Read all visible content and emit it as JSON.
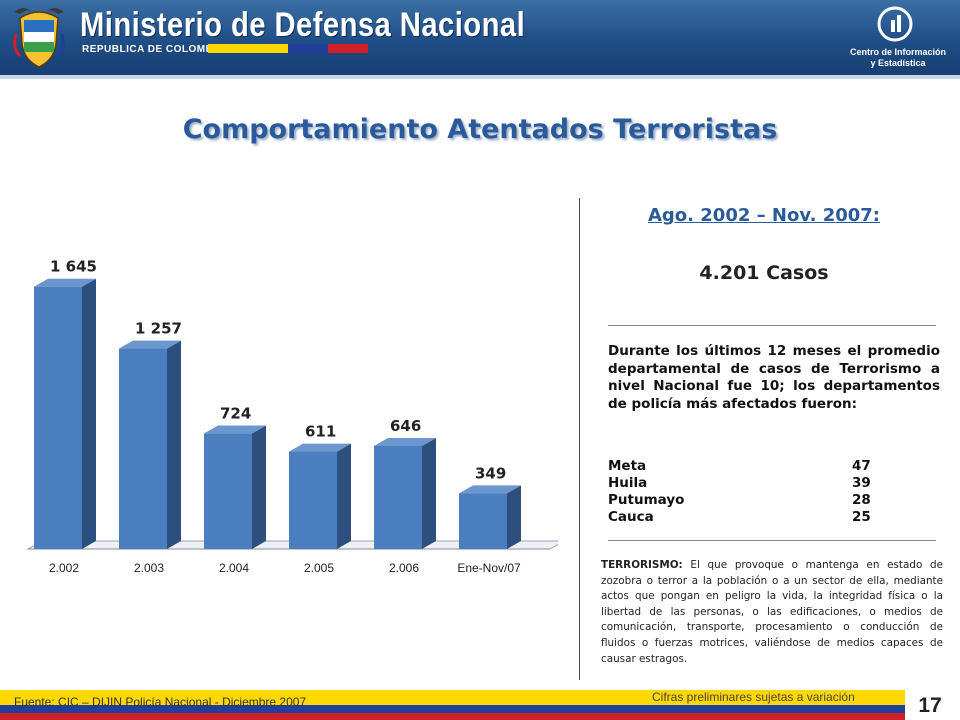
{
  "header": {
    "title": "Ministerio de Defensa Nacional",
    "subtitle": "REPUBLICA DE COLOMBIA",
    "cie_label_line1": "Centro de Información",
    "cie_label_line2": "y Estadística"
  },
  "colors": {
    "header_blue": "#1f4d86",
    "title_blue": "#2a5a9a",
    "bar_front": "#4a7ebf",
    "bar_side": "#2c4f7e",
    "bar_top": "#6c96ce",
    "flag_yellow": "#ffd800",
    "flag_blue": "#1f3f9a",
    "flag_red": "#d0202a"
  },
  "page_title": "Comportamiento Atentados Terroristas",
  "summary": {
    "period": "Ago. 2002 – Nov. 2007:",
    "cases": "4.201 Casos",
    "paragraph": "Durante los últimos 12 meses el promedio departamental de casos de Terrorismo a nivel Nacional fue 10; los departamentos de policía más afectados fueron:",
    "departments": [
      {
        "name": "Meta",
        "value": "47"
      },
      {
        "name": "Huila",
        "value": "39"
      },
      {
        "name": "Putumayo",
        "value": "28"
      },
      {
        "name": "Cauca",
        "value": "25"
      }
    ]
  },
  "definition": {
    "term": "TERRORISMO:",
    "text": "El que provoque o mantenga en estado de zozobra o terror a la población o a un sector de ella, mediante actos que pongan en peligro la vida, la integridad física o la libertad de las personas, o las edificaciones, o medios de comunicación, transporte, procesamiento o conducción de fluidos o fuerzas motrices, valiéndose de medios capaces de causar estragos."
  },
  "footer": {
    "source": "Fuente: CIC – DIJIN Policía Nacional   - Diciembre 2007",
    "preliminary": "Cifras preliminares sujetas a variación",
    "page_number": "17"
  },
  "chart_data": {
    "type": "bar",
    "categories": [
      "2.002",
      "2.003",
      "2.004",
      "2.005",
      "2.006",
      "Ene-Nov/07"
    ],
    "values": [
      1645,
      1257,
      724,
      611,
      646,
      349
    ],
    "data_labels": [
      "1 645",
      "1 257",
      "724",
      "611",
      "646",
      "349"
    ],
    "title": "",
    "xlabel": "",
    "ylabel": "",
    "ylim": [
      0,
      1800
    ],
    "grid": false,
    "legend": "none"
  }
}
